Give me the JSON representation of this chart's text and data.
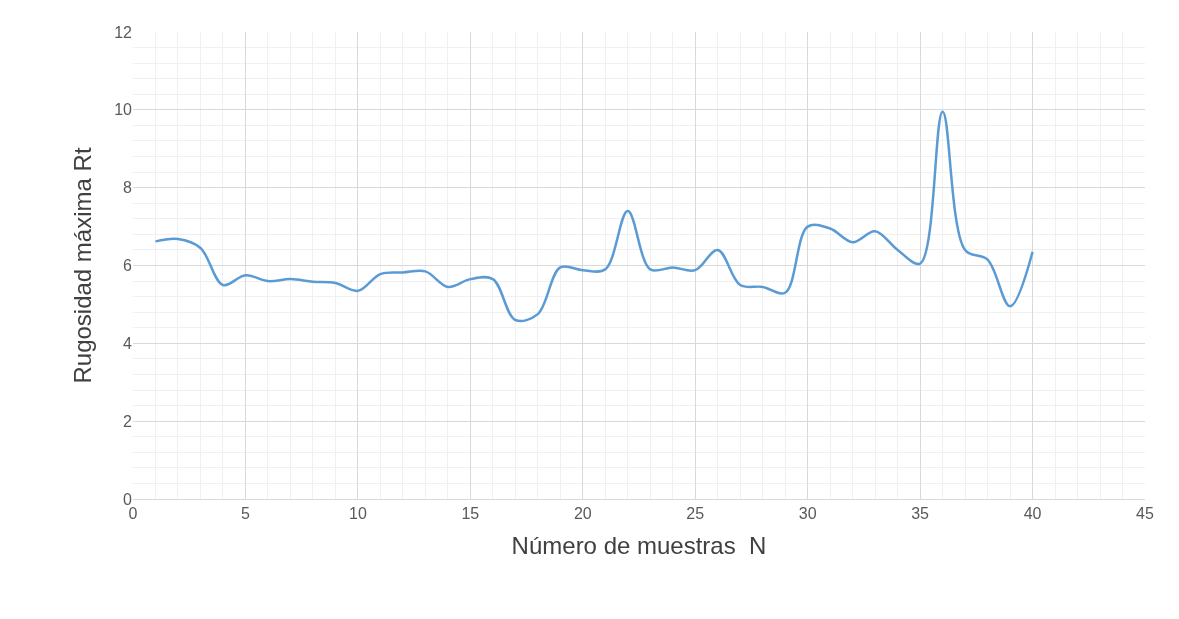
{
  "chart_data": {
    "type": "line",
    "xlabel": "Número de muestras  N",
    "ylabel": "Rugosidad máxima Rt",
    "x": [
      1,
      2,
      3,
      4,
      5,
      6,
      7,
      8,
      9,
      10,
      11,
      12,
      13,
      14,
      15,
      16,
      17,
      18,
      19,
      20,
      21,
      22,
      23,
      24,
      25,
      26,
      27,
      28,
      29,
      30,
      31,
      32,
      33,
      34,
      35,
      36,
      37,
      38,
      39,
      40
    ],
    "series": [
      {
        "color": "#5b9bd5",
        "values": [
          6.62,
          6.68,
          6.45,
          5.5,
          5.75,
          5.6,
          5.65,
          5.58,
          5.55,
          5.35,
          5.78,
          5.82,
          5.85,
          5.45,
          5.65,
          5.65,
          4.6,
          4.75,
          5.95,
          5.88,
          5.9,
          7.4,
          5.9,
          5.95,
          5.88,
          6.4,
          5.5,
          5.45,
          5.3,
          7.0,
          6.95,
          6.6,
          6.88,
          6.4,
          6.05,
          9.95,
          6.4,
          6.15,
          4.95,
          6.35
        ]
      }
    ],
    "xlim": [
      0,
      45
    ],
    "xticks": [
      0,
      5,
      10,
      15,
      20,
      25,
      30,
      35,
      40,
      45
    ],
    "ylim": [
      0,
      12
    ],
    "yticks": [
      0,
      2,
      4,
      6,
      8,
      10,
      12
    ],
    "grid": true,
    "marker": "none",
    "line_style": "solid"
  }
}
